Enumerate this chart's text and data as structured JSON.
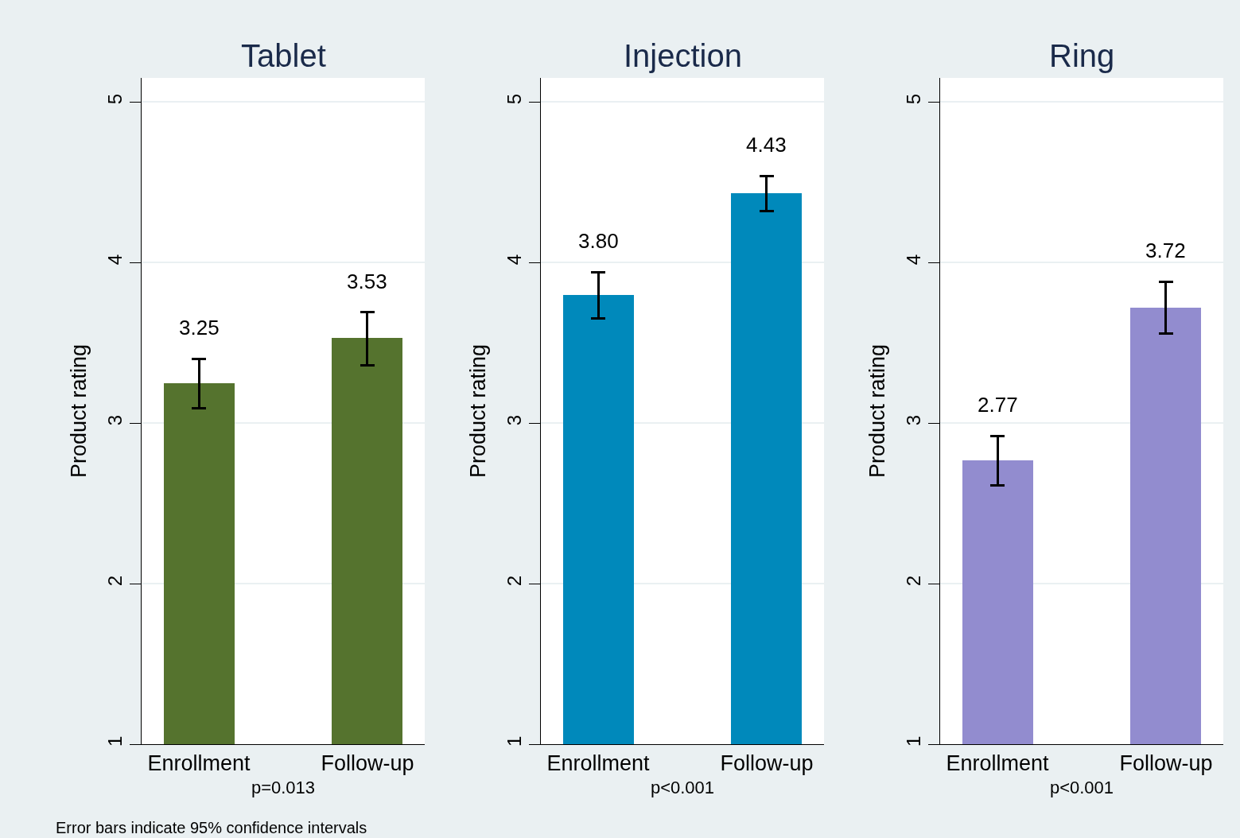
{
  "chart_data": [
    {
      "type": "bar",
      "title": "Tablet",
      "ylabel": "Product rating",
      "xlabel": "p=0.013",
      "categories": [
        "Enrollment",
        "Follow-up"
      ],
      "values": [
        3.25,
        3.53
      ],
      "errors": [
        [
          3.09,
          3.4
        ],
        [
          3.36,
          3.69
        ]
      ],
      "value_labels": [
        "3.25",
        "3.53"
      ],
      "color": "#55732e",
      "ylim": [
        1,
        5.15
      ],
      "yticks": [
        1,
        2,
        3,
        4,
        5
      ],
      "grid": "y",
      "annotations": [
        "Error bars indicate 95% confidence intervals"
      ]
    },
    {
      "type": "bar",
      "title": "Injection",
      "ylabel": "Product rating",
      "xlabel": "p<0.001",
      "categories": [
        "Enrollment",
        "Follow-up"
      ],
      "values": [
        3.8,
        4.43
      ],
      "errors": [
        [
          3.65,
          3.94
        ],
        [
          4.32,
          4.54
        ]
      ],
      "value_labels": [
        "3.80",
        "4.43"
      ],
      "color": "#0089bb",
      "ylim": [
        1,
        5.15
      ],
      "yticks": [
        1,
        2,
        3,
        4,
        5
      ],
      "grid": "y"
    },
    {
      "type": "bar",
      "title": "Ring",
      "ylabel": "Product rating",
      "xlabel": "p<0.001",
      "categories": [
        "Enrollment",
        "Follow-up"
      ],
      "values": [
        2.77,
        3.72
      ],
      "errors": [
        [
          2.61,
          2.92
        ],
        [
          3.56,
          3.88
        ]
      ],
      "value_labels": [
        "2.77",
        "3.72"
      ],
      "color": "#928ccf",
      "ylim": [
        1,
        5.15
      ],
      "yticks": [
        1,
        2,
        3,
        4,
        5
      ],
      "grid": "y"
    }
  ]
}
